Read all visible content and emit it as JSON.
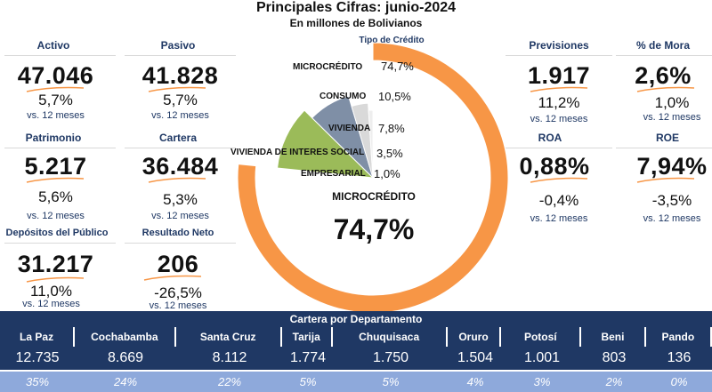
{
  "header": {
    "title": "Principales Cifras: junio-2024",
    "subtitle": "En millones de Bolivianos"
  },
  "kpis": {
    "activo": {
      "label": "Activo",
      "value": "47.046",
      "change": "5,7%",
      "vs": "vs. 12 meses"
    },
    "pasivo": {
      "label": "Pasivo",
      "value": "41.828",
      "change": "5,7%",
      "vs": "vs. 12 meses"
    },
    "patrimonio": {
      "label": "Patrimonio",
      "value": "5.217",
      "change": "5,6%",
      "vs": "vs. 12 meses"
    },
    "cartera": {
      "label": "Cartera",
      "value": "36.484",
      "change": "5,3%",
      "vs": "vs. 12 meses"
    },
    "depositos": {
      "label": "Depósitos del Público",
      "value": "31.217",
      "change": "11,0%",
      "vs": "vs. 12 meses"
    },
    "resultado": {
      "label": "Resultado Neto",
      "value": "206",
      "change": "-26,5%",
      "vs": "vs. 12 meses"
    },
    "previsiones": {
      "label": "Previsiones",
      "value": "1.917",
      "change": "11,2%",
      "vs": "vs. 12 meses"
    },
    "mora": {
      "label": "% de Mora",
      "value": "2,6%",
      "change": "1,0%",
      "vs": "vs. 12 meses"
    },
    "roa": {
      "label": "ROA",
      "value": "0,88%",
      "change": "-0,4%",
      "vs": "vs. 12 meses"
    },
    "roe": {
      "label": "ROE",
      "value": "7,94%",
      "change": "-3,5%",
      "vs": "vs. 12 meses"
    }
  },
  "chart_data": {
    "type": "pie",
    "title": "Tipo de Crédito",
    "categories": [
      "MICROCRÉDITO",
      "CONSUMO",
      "VIVIENDA",
      "VIVIENDA DE INTERES SOCIAL",
      "EMPRESARIAL"
    ],
    "values": [
      74.7,
      10.5,
      7.8,
      3.5,
      1.0
    ],
    "value_labels": [
      "74,7%",
      "10,5%",
      "7,8%",
      "3,5%",
      "1,0%"
    ],
    "colors": [
      "#f79646",
      "#9bbb59",
      "#7f8fa6",
      "#d9d9d9",
      "#eeeeee"
    ],
    "center_label": "MICROCRÉDITO",
    "center_value": "74,7%"
  },
  "departments": {
    "header": "Cartera por Departamento",
    "items": [
      {
        "name": "La Paz",
        "value": "12.735",
        "share": "35%"
      },
      {
        "name": "Cochabamba",
        "value": "8.669",
        "share": "24%"
      },
      {
        "name": "Santa Cruz",
        "value": "8.112",
        "share": "22%"
      },
      {
        "name": "Tarija",
        "value": "1.774",
        "share": "5%"
      },
      {
        "name": "Chuquisaca",
        "value": "1.750",
        "share": "5%"
      },
      {
        "name": "Oruro",
        "value": "1.504",
        "share": "4%"
      },
      {
        "name": "Potosí",
        "value": "1.001",
        "share": "3%"
      },
      {
        "name": "Beni",
        "value": "803",
        "share": "2%"
      },
      {
        "name": "Pando",
        "value": "136",
        "share": "0%"
      }
    ]
  }
}
